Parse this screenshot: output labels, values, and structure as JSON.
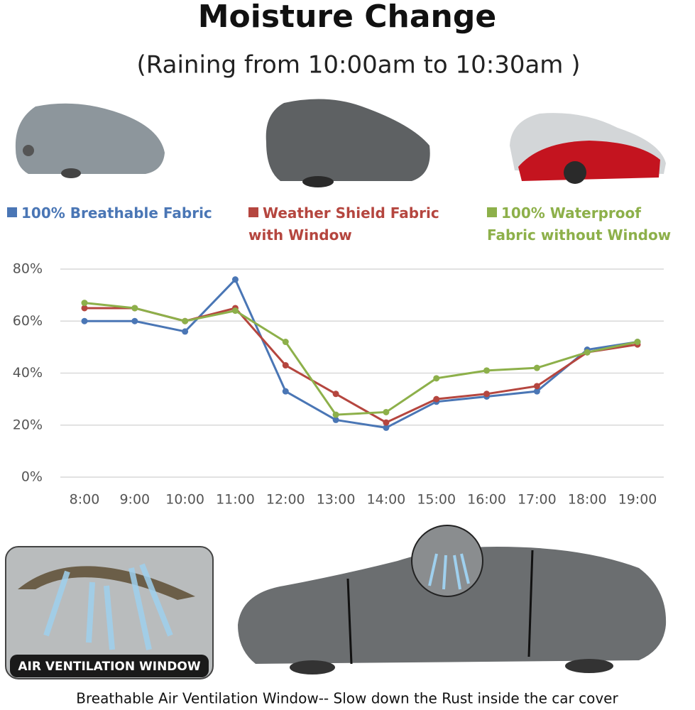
{
  "chart_data": {
    "type": "line",
    "title": "Moisture Change",
    "subtitle": "(Raining from 10:00am to 10:30am )",
    "categories": [
      "8:00",
      "9:00",
      "10:00",
      "11:00",
      "12:00",
      "13:00",
      "14:00",
      "15:00",
      "16:00",
      "17:00",
      "18:00",
      "19:00"
    ],
    "series": [
      {
        "name": "100% Breathable Fabric",
        "color": "#4a76b5",
        "values": [
          60,
          60,
          56,
          76,
          33,
          22,
          19,
          29,
          31,
          33,
          49,
          52
        ]
      },
      {
        "name": "Weather Shield Fabric with Window",
        "color": "#b5463f",
        "values": [
          65,
          65,
          60,
          65,
          43,
          32,
          21,
          30,
          32,
          35,
          48,
          51
        ]
      },
      {
        "name": "100% Waterproof Fabric without Window",
        "color": "#8db04a",
        "values": [
          67,
          65,
          60,
          64,
          52,
          24,
          25,
          38,
          41,
          42,
          48,
          52
        ]
      }
    ],
    "ylim": [
      0,
      80
    ],
    "yticks": [
      {
        "value": 0,
        "label": "0%"
      },
      {
        "value": 20,
        "label": "20%"
      },
      {
        "value": 40,
        "label": "40%"
      },
      {
        "value": 60,
        "label": "60%"
      },
      {
        "value": 80,
        "label": "80%"
      }
    ],
    "grid": true,
    "annotations": [
      "AIR VENTILATION WINDOW",
      "Breathable Air Ventilation Window-- Slow down the Rust inside the car cover"
    ]
  }
}
